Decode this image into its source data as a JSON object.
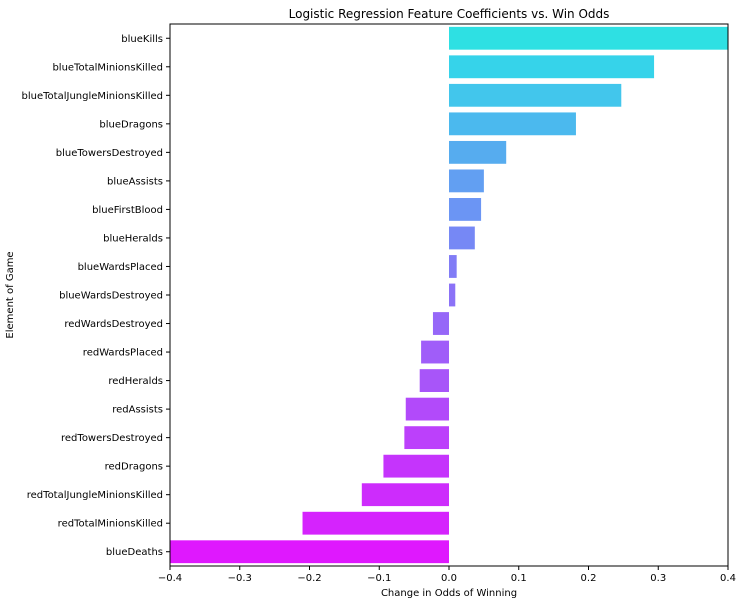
{
  "chart_data": {
    "type": "bar",
    "orientation": "horizontal",
    "title": "Logistic Regression Feature Coefficients vs. Win Odds",
    "xlabel": "Change in Odds of Winning",
    "ylabel": "Element of Game",
    "xlim": [
      -0.4,
      0.4
    ],
    "xticks": [
      -0.4,
      -0.3,
      -0.2,
      -0.1,
      0.0,
      0.1,
      0.2,
      0.3,
      0.4
    ],
    "xtick_labels": [
      "−0.4",
      "−0.3",
      "−0.2",
      "−0.1",
      "0.0",
      "0.1",
      "0.2",
      "0.3",
      "0.4"
    ],
    "grid": false,
    "palette": "cool",
    "categories": [
      "blueKills",
      "blueTotalMinionsKilled",
      "blueTotalJungleMinionsKilled",
      "blueDragons",
      "blueTowersDestroyed",
      "blueAssists",
      "blueFirstBlood",
      "blueHeralds",
      "blueWardsPlaced",
      "blueWardsDestroyed",
      "redWardsDestroyed",
      "redWardsPlaced",
      "redHeralds",
      "redAssists",
      "redTowersDestroyed",
      "redDragons",
      "redTotalJungleMinionsKilled",
      "redTotalMinionsKilled",
      "blueDeaths"
    ],
    "values": [
      0.42,
      0.294,
      0.247,
      0.182,
      0.082,
      0.05,
      0.046,
      0.037,
      0.011,
      0.009,
      -0.023,
      -0.04,
      -0.042,
      -0.062,
      -0.064,
      -0.094,
      -0.125,
      -0.21,
      -0.44
    ],
    "colors": [
      "#2ee0e3",
      "#36d3ea",
      "#42c6ec",
      "#4bb9ee",
      "#56acef",
      "#629ff2",
      "#6b95f4",
      "#7688f5",
      "#817cf6",
      "#8b72f7",
      "#9667f8",
      "#a05df9",
      "#a855f9",
      "#b24afa",
      "#bc40fb",
      "#c534fc",
      "#cd2cfc",
      "#d523fd",
      "#df18fe"
    ]
  }
}
